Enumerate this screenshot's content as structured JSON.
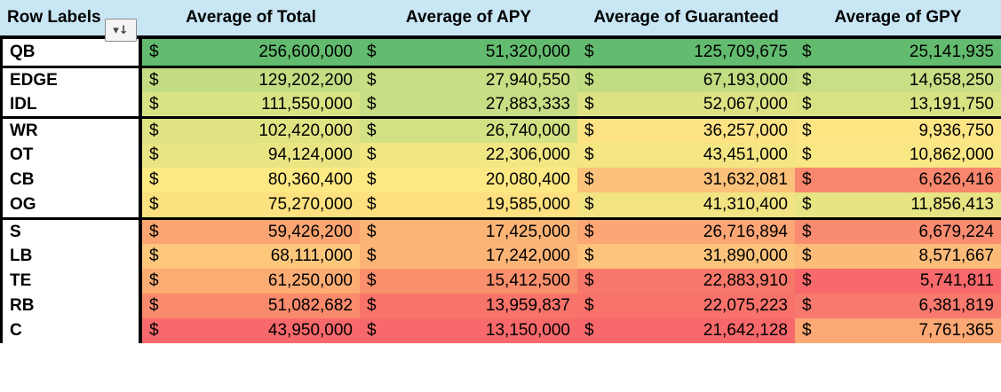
{
  "header": {
    "row_labels": "Row Labels",
    "col1": "Average of Total",
    "col2": "Average of APY",
    "col3": "Average of Guaranteed",
    "col4": "Average of GPY",
    "filter_icon": "filter-sort-icon"
  },
  "currency": "$",
  "rows": [
    {
      "label": "QB",
      "group_start": true,
      "v": [
        "256,600,000",
        "51,320,000",
        "125,709,675",
        "25,141,935"
      ],
      "c": [
        "#62bb6e",
        "#62bb6e",
        "#62bb6e",
        "#62bb6e"
      ]
    },
    {
      "label": "EDGE",
      "group_start": true,
      "v": [
        "129,202,200",
        "27,940,550",
        "67,193,000",
        "14,658,250"
      ],
      "c": [
        "#c4dd83",
        "#c7de84",
        "#c2dc82",
        "#c9df85"
      ]
    },
    {
      "label": "IDL",
      "group_start": false,
      "v": [
        "111,550,000",
        "27,883,333",
        "52,067,000",
        "13,191,750"
      ],
      "c": [
        "#d9e383",
        "#c7de84",
        "#dde283",
        "#d8e283"
      ]
    },
    {
      "label": "WR",
      "group_start": true,
      "v": [
        "102,420,000",
        "26,740,000",
        "36,257,000",
        "9,936,750"
      ],
      "c": [
        "#e0e382",
        "#d2e183",
        "#fde283",
        "#fde584"
      ]
    },
    {
      "label": "OT",
      "group_start": false,
      "v": [
        "94,124,000",
        "22,306,000",
        "43,451,000",
        "10,862,000"
      ],
      "c": [
        "#e9e582",
        "#f0e783",
        "#f3e683",
        "#f8e784"
      ]
    },
    {
      "label": "CB",
      "group_start": false,
      "v": [
        "80,360,400",
        "20,080,400",
        "31,632,081",
        "6,626,416"
      ],
      "c": [
        "#fde982",
        "#fde983",
        "#fcc27b",
        "#f8876e"
      ]
    },
    {
      "label": "OG",
      "group_start": false,
      "v": [
        "75,270,000",
        "19,585,000",
        "41,310,400",
        "11,856,413"
      ],
      "c": [
        "#fbe17f",
        "#fde07f",
        "#f2e483",
        "#e7e483"
      ]
    },
    {
      "label": "S",
      "group_start": true,
      "v": [
        "59,426,200",
        "17,425,000",
        "26,716,894",
        "6,679,224"
      ],
      "c": [
        "#fba672",
        "#fbb476",
        "#fba674",
        "#f98b70"
      ]
    },
    {
      "label": "LB",
      "group_start": false,
      "v": [
        "68,111,000",
        "17,242,000",
        "31,890,000",
        "8,571,667"
      ],
      "c": [
        "#fcc77b",
        "#fbb475",
        "#fcc37b",
        "#fcbb79"
      ]
    },
    {
      "label": "TE",
      "group_start": false,
      "v": [
        "61,250,000",
        "15,412,500",
        "22,883,910",
        "5,741,811"
      ],
      "c": [
        "#fbac73",
        "#f98f6c",
        "#f8776b",
        "#f8696b"
      ]
    },
    {
      "label": "RB",
      "group_start": false,
      "v": [
        "51,082,682",
        "13,959,837",
        "22,075,223",
        "6,381,819"
      ],
      "c": [
        "#f98a6c",
        "#f8736a",
        "#f8726b",
        "#f8796d"
      ]
    },
    {
      "label": "C",
      "group_start": false,
      "v": [
        "43,950,000",
        "13,150,000",
        "21,642,128",
        "7,761,365"
      ],
      "c": [
        "#f8696b",
        "#f8696b",
        "#f8696b",
        "#fba874"
      ]
    }
  ]
}
